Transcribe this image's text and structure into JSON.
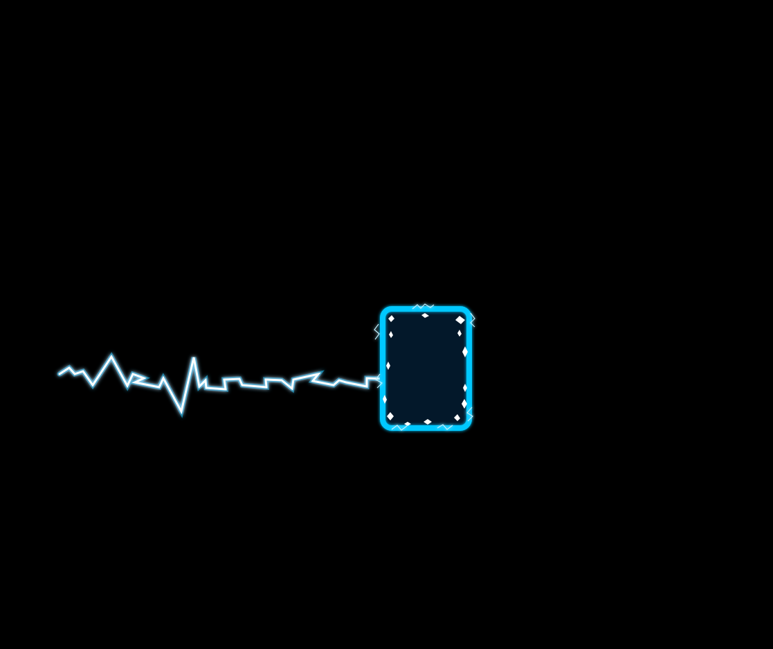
{
  "scene": {
    "background_color": "#000000",
    "energy_color": "#00c8ff",
    "panel_fill_color": "#03182a",
    "spark_color": "#ffffff"
  }
}
